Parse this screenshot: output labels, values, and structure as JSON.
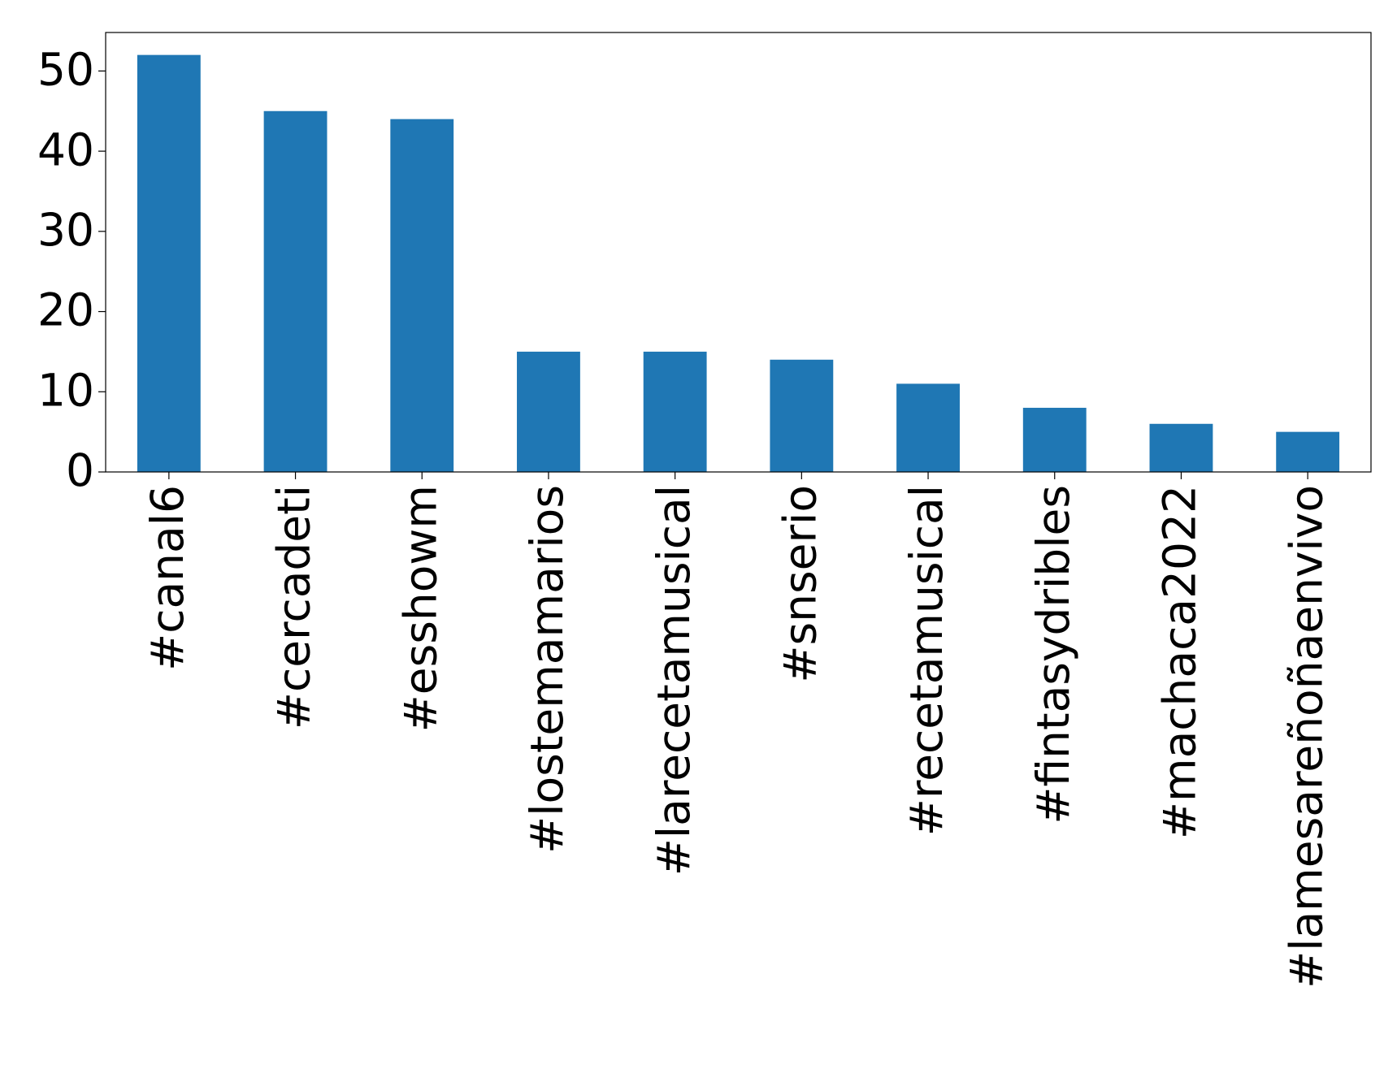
{
  "chart_data": {
    "type": "bar",
    "categories": [
      "#canal6",
      "#cercadeti",
      "#esshowm",
      "#lostemamarios",
      "#larecetamusical",
      "#snserio",
      "#recetamusical",
      "#fintasydribles",
      "#machaca2022",
      "#lamesareñoñaenvivo"
    ],
    "values": [
      52,
      45,
      44,
      15,
      15,
      14,
      11,
      8,
      6,
      5
    ],
    "color": "#1f77b4",
    "ylim": [
      0,
      54.8
    ],
    "yticks": [
      0,
      10,
      20,
      30,
      40,
      50
    ],
    "grid": false
  }
}
